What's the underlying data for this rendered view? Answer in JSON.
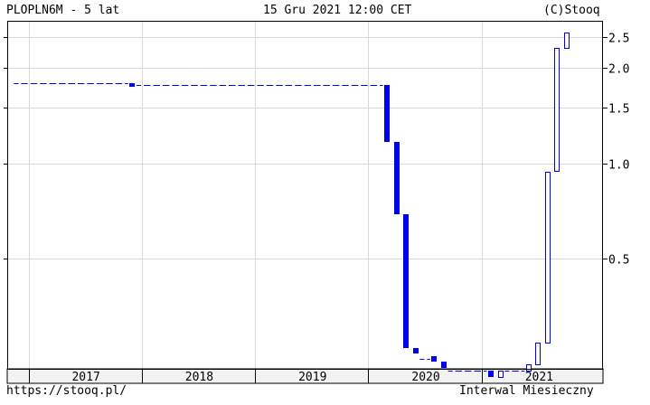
{
  "header": {
    "symbol_title": "PLOPLN6M - 5 lat",
    "datetime": "15 Gru 2021 12:00 CET",
    "copyright": "(C)Stooq"
  },
  "footer": {
    "link": "https://stooq.pl/",
    "interval": "Interwal Miesieczny"
  },
  "colors": {
    "series": "#0000ee",
    "grid": "#d8d8d8",
    "frame": "#000000"
  },
  "chart_data": {
    "type": "candlestick",
    "y_scale": "log",
    "ylim": [
      0.2,
      2.75
    ],
    "y_ticks": [
      0.5,
      1.0,
      1.5,
      2.0,
      2.5
    ],
    "y_tick_labels": [
      "0.5",
      "1.0",
      "1.5",
      "2.0",
      "2.5"
    ],
    "x_labels": [
      "2017",
      "2018",
      "2019",
      "2020",
      "2021"
    ],
    "grid": true,
    "x_label_boundaries": [
      "2017-01",
      "2018-01",
      "2019-01",
      "2020-01",
      "2021-01"
    ],
    "x_label_gridlines": [
      "2017-01",
      "2018-01",
      "2019-01",
      "2020-01",
      "2021-01"
    ],
    "bars": [
      {
        "date": "2016-12",
        "open": 1.8,
        "close": 1.79,
        "dashed": true
      },
      {
        "date": "2017-01",
        "open": 1.79,
        "close": 1.79,
        "dashed": true
      },
      {
        "date": "2017-02",
        "open": 1.79,
        "close": 1.79,
        "dashed": true
      },
      {
        "date": "2017-03",
        "open": 1.79,
        "close": 1.79,
        "dashed": true
      },
      {
        "date": "2017-04",
        "open": 1.79,
        "close": 1.79,
        "dashed": true
      },
      {
        "date": "2017-05",
        "open": 1.79,
        "close": 1.79,
        "dashed": true
      },
      {
        "date": "2017-06",
        "open": 1.79,
        "close": 1.79,
        "dashed": true
      },
      {
        "date": "2017-07",
        "open": 1.79,
        "close": 1.79,
        "dashed": true
      },
      {
        "date": "2017-08",
        "open": 1.79,
        "close": 1.79,
        "dashed": true
      },
      {
        "date": "2017-09",
        "open": 1.79,
        "close": 1.79,
        "dashed": true
      },
      {
        "date": "2017-10",
        "open": 1.79,
        "close": 1.79,
        "dashed": true
      },
      {
        "date": "2017-11",
        "open": 1.79,
        "close": 1.79,
        "dashed": true
      },
      {
        "date": "2017-12",
        "open": 1.79,
        "close": 1.77
      },
      {
        "date": "2018-01",
        "open": 1.77,
        "close": 1.77,
        "dashed": true
      },
      {
        "date": "2018-02",
        "open": 1.77,
        "close": 1.77,
        "dashed": true
      },
      {
        "date": "2018-03",
        "open": 1.77,
        "close": 1.77,
        "dashed": true
      },
      {
        "date": "2018-04",
        "open": 1.77,
        "close": 1.77,
        "dashed": true
      },
      {
        "date": "2018-05",
        "open": 1.77,
        "close": 1.77,
        "dashed": true
      },
      {
        "date": "2018-06",
        "open": 1.77,
        "close": 1.77,
        "dashed": true
      },
      {
        "date": "2018-07",
        "open": 1.77,
        "close": 1.77,
        "dashed": true
      },
      {
        "date": "2018-08",
        "open": 1.77,
        "close": 1.77,
        "dashed": true
      },
      {
        "date": "2018-09",
        "open": 1.77,
        "close": 1.77,
        "dashed": true
      },
      {
        "date": "2018-10",
        "open": 1.77,
        "close": 1.77,
        "dashed": true
      },
      {
        "date": "2018-11",
        "open": 1.77,
        "close": 1.77,
        "dashed": true
      },
      {
        "date": "2018-12",
        "open": 1.77,
        "close": 1.77,
        "dashed": true
      },
      {
        "date": "2019-01",
        "open": 1.77,
        "close": 1.77,
        "dashed": true
      },
      {
        "date": "2019-02",
        "open": 1.77,
        "close": 1.77,
        "dashed": true
      },
      {
        "date": "2019-03",
        "open": 1.77,
        "close": 1.77,
        "dashed": true
      },
      {
        "date": "2019-04",
        "open": 1.77,
        "close": 1.77,
        "dashed": true
      },
      {
        "date": "2019-05",
        "open": 1.77,
        "close": 1.77,
        "dashed": true
      },
      {
        "date": "2019-06",
        "open": 1.77,
        "close": 1.77,
        "dashed": true
      },
      {
        "date": "2019-07",
        "open": 1.77,
        "close": 1.77,
        "dashed": true
      },
      {
        "date": "2019-08",
        "open": 1.77,
        "close": 1.77,
        "dashed": true
      },
      {
        "date": "2019-09",
        "open": 1.77,
        "close": 1.77,
        "dashed": true
      },
      {
        "date": "2019-10",
        "open": 1.77,
        "close": 1.77,
        "dashed": true
      },
      {
        "date": "2019-11",
        "open": 1.77,
        "close": 1.77,
        "dashed": true
      },
      {
        "date": "2019-12",
        "open": 1.77,
        "close": 1.77,
        "dashed": true
      },
      {
        "date": "2020-01",
        "open": 1.77,
        "close": 1.77,
        "dashed": true
      },
      {
        "date": "2020-02",
        "open": 1.77,
        "close": 1.77,
        "dashed": true
      },
      {
        "date": "2020-03",
        "open": 1.77,
        "close": 1.17
      },
      {
        "date": "2020-04",
        "open": 1.17,
        "close": 0.69
      },
      {
        "date": "2020-05",
        "open": 0.69,
        "close": 0.26
      },
      {
        "date": "2020-06",
        "open": 0.26,
        "close": 0.25
      },
      {
        "date": "2020-07",
        "open": 0.25,
        "close": 0.24,
        "dashed": true
      },
      {
        "date": "2020-08",
        "open": 0.245,
        "close": 0.235
      },
      {
        "date": "2020-09",
        "open": 0.235,
        "close": 0.225
      },
      {
        "date": "2020-10",
        "open": 0.225,
        "close": 0.22,
        "dashed": true
      },
      {
        "date": "2020-11",
        "open": 0.22,
        "close": 0.22,
        "dashed": true
      },
      {
        "date": "2020-12",
        "open": 0.22,
        "close": 0.22,
        "dashed": true
      },
      {
        "date": "2021-01",
        "open": 0.22,
        "close": 0.22,
        "dashed": true
      },
      {
        "date": "2021-02",
        "open": 0.22,
        "close": 0.21
      },
      {
        "date": "2021-03",
        "open": 0.21,
        "close": 0.22
      },
      {
        "date": "2021-04",
        "open": 0.22,
        "close": 0.22,
        "dashed": true
      },
      {
        "date": "2021-05",
        "open": 0.22,
        "close": 0.22,
        "dashed": true
      },
      {
        "date": "2021-06",
        "open": 0.22,
        "close": 0.23
      },
      {
        "date": "2021-07",
        "open": 0.23,
        "close": 0.27
      },
      {
        "date": "2021-08",
        "open": 0.27,
        "close": 0.94
      },
      {
        "date": "2021-09",
        "open": 0.94,
        "close": 2.31
      },
      {
        "date": "2021-10",
        "open": 2.31,
        "close": 2.59
      }
    ]
  }
}
